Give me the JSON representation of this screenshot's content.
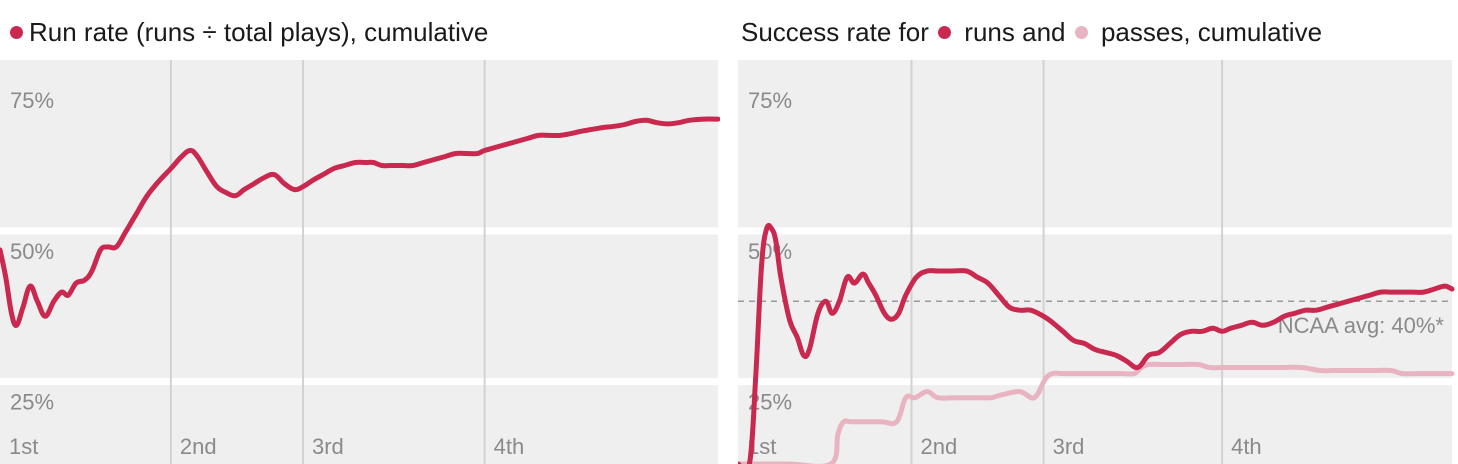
{
  "colors": {
    "runs": "#c9294f",
    "passes": "#e8b4c1",
    "panel_bg": "#efefef",
    "grid_text": "#8a8a8a"
  },
  "chart_data": [
    {
      "type": "line",
      "title_parts": [
        "Run rate (runs ÷ total plays), cumulative"
      ],
      "title_dot_colors": [
        "#c9294f"
      ],
      "y_ticks": [
        {
          "value": 75,
          "label": "75%"
        },
        {
          "value": 50,
          "label": "50%"
        },
        {
          "value": 25,
          "label": "25%"
        }
      ],
      "ylim": [
        13,
        80
      ],
      "xlim": [
        0,
        100
      ],
      "quarters": [
        {
          "x": 0,
          "label": "1st"
        },
        {
          "x": 23.8,
          "label": "2nd"
        },
        {
          "x": 42.2,
          "label": "3rd"
        },
        {
          "x": 67.5,
          "label": "4th"
        }
      ],
      "series": [
        {
          "color": "#c9294f",
          "width": 5,
          "values": [
            [
              0,
              48.5
            ],
            [
              0.8,
              44
            ],
            [
              1.6,
              38
            ],
            [
              2.3,
              36
            ],
            [
              3.2,
              39
            ],
            [
              4.2,
              42.5
            ],
            [
              5.2,
              40
            ],
            [
              6.3,
              37.5
            ],
            [
              7.5,
              40
            ],
            [
              8.6,
              41.5
            ],
            [
              9.5,
              41
            ],
            [
              10.6,
              43
            ],
            [
              11.8,
              43.5
            ],
            [
              12.8,
              45
            ],
            [
              14,
              48.5
            ],
            [
              15,
              49
            ],
            [
              16.2,
              49
            ],
            [
              17.5,
              51.5
            ],
            [
              19,
              54.5
            ],
            [
              20.5,
              57.5
            ],
            [
              22.2,
              60
            ],
            [
              23.8,
              62
            ],
            [
              25.3,
              64
            ],
            [
              26.5,
              65
            ],
            [
              27.5,
              64
            ],
            [
              28.8,
              61.5
            ],
            [
              30.2,
              59
            ],
            [
              31.5,
              58
            ],
            [
              32.8,
              57.5
            ],
            [
              34,
              58.5
            ],
            [
              35.4,
              59.5
            ],
            [
              36.8,
              60.5
            ],
            [
              38.2,
              61
            ],
            [
              39.6,
              59.5
            ],
            [
              41,
              58.5
            ],
            [
              42.2,
              59
            ],
            [
              43.5,
              60
            ],
            [
              45,
              61
            ],
            [
              46.5,
              62
            ],
            [
              48,
              62.5
            ],
            [
              49.5,
              63
            ],
            [
              51,
              63
            ],
            [
              52,
              63
            ],
            [
              53.2,
              62.5
            ],
            [
              54.5,
              62.5
            ],
            [
              56,
              62.5
            ],
            [
              57.5,
              62.5
            ],
            [
              59,
              63
            ],
            [
              60.5,
              63.5
            ],
            [
              62,
              64
            ],
            [
              63.5,
              64.5
            ],
            [
              65,
              64.5
            ],
            [
              66.5,
              64.5
            ],
            [
              67.5,
              65
            ],
            [
              69,
              65.5
            ],
            [
              70.5,
              66
            ],
            [
              72,
              66.5
            ],
            [
              73.5,
              67
            ],
            [
              75,
              67.5
            ],
            [
              76.5,
              67.5
            ],
            [
              78,
              67.5
            ],
            [
              79.5,
              67.8
            ],
            [
              81,
              68.2
            ],
            [
              82.5,
              68.5
            ],
            [
              84,
              68.8
            ],
            [
              85.5,
              69
            ],
            [
              87,
              69.3
            ],
            [
              88.5,
              69.8
            ],
            [
              90,
              70
            ],
            [
              91.5,
              69.6
            ],
            [
              93,
              69.4
            ],
            [
              94.5,
              69.6
            ],
            [
              96,
              70
            ],
            [
              98,
              70.2
            ],
            [
              100,
              70.2
            ]
          ]
        }
      ]
    },
    {
      "type": "line",
      "title_parts": [
        "Success rate for ",
        " runs and ",
        " passes, cumulative"
      ],
      "title_dot_colors": [
        "#c9294f",
        "#e8b4c1"
      ],
      "y_ticks": [
        {
          "value": 75,
          "label": "75%"
        },
        {
          "value": 50,
          "label": "50%"
        },
        {
          "value": 25,
          "label": "25%"
        }
      ],
      "ylim": [
        13,
        80
      ],
      "xlim": [
        0,
        100
      ],
      "quarters": [
        {
          "x": 0,
          "label": "1st"
        },
        {
          "x": 24.3,
          "label": "2nd"
        },
        {
          "x": 42.8,
          "label": "3rd"
        },
        {
          "x": 67.8,
          "label": "4th"
        }
      ],
      "reference_line": {
        "value": 40,
        "label": "NCAA avg: 40%*"
      },
      "series": [
        {
          "color": "#c9294f",
          "width": 5,
          "values": [
            [
              0,
              13
            ],
            [
              1.6,
              13
            ],
            [
              2.5,
              28
            ],
            [
              3.3,
              46
            ],
            [
              4,
              52
            ],
            [
              4.7,
              52
            ],
            [
              5.3,
              50
            ],
            [
              6,
              44
            ],
            [
              7.2,
              37
            ],
            [
              8.3,
              34
            ],
            [
              9.2,
              31
            ],
            [
              10,
              32
            ],
            [
              11.2,
              38
            ],
            [
              12.3,
              40
            ],
            [
              13.2,
              38
            ],
            [
              14.2,
              40
            ],
            [
              15.3,
              44
            ],
            [
              16.3,
              43
            ],
            [
              17.5,
              44.5
            ],
            [
              18.3,
              43
            ],
            [
              19.3,
              41
            ],
            [
              20.5,
              38
            ],
            [
              21.5,
              37
            ],
            [
              22.5,
              38
            ],
            [
              23.5,
              41
            ],
            [
              25,
              44
            ],
            [
              26.5,
              45
            ],
            [
              28,
              45
            ],
            [
              30,
              45
            ],
            [
              32,
              45
            ],
            [
              33.5,
              44
            ],
            [
              35,
              43
            ],
            [
              36.5,
              41
            ],
            [
              38,
              39
            ],
            [
              39.5,
              38.5
            ],
            [
              41,
              38.5
            ],
            [
              42.8,
              37.5
            ],
            [
              44,
              36.5
            ],
            [
              45.5,
              35
            ],
            [
              47,
              33.5
            ],
            [
              48.5,
              33
            ],
            [
              50,
              32
            ],
            [
              51.5,
              31.5
            ],
            [
              53,
              31
            ],
            [
              54.5,
              30
            ],
            [
              56,
              29
            ],
            [
              57.5,
              31
            ],
            [
              59,
              31.5
            ],
            [
              60.5,
              33
            ],
            [
              62,
              34.5
            ],
            [
              63.5,
              35
            ],
            [
              65,
              35
            ],
            [
              66.5,
              35.5
            ],
            [
              67.8,
              35
            ],
            [
              69,
              35.5
            ],
            [
              70.5,
              36
            ],
            [
              72,
              36.5
            ],
            [
              73.5,
              36
            ],
            [
              75,
              36.5
            ],
            [
              76.5,
              37.5
            ],
            [
              78,
              38
            ],
            [
              79.5,
              38.5
            ],
            [
              81,
              38.5
            ],
            [
              82.5,
              39
            ],
            [
              84,
              39.5
            ],
            [
              85.5,
              40
            ],
            [
              87,
              40.5
            ],
            [
              88.5,
              41
            ],
            [
              90,
              41.5
            ],
            [
              91.5,
              41.5
            ],
            [
              93,
              41.5
            ],
            [
              94.5,
              41.5
            ],
            [
              96,
              41.5
            ],
            [
              97.5,
              42
            ],
            [
              99,
              42.5
            ],
            [
              100,
              42
            ]
          ]
        },
        {
          "color": "#e8b4c1",
          "width": 5,
          "values": [
            [
              0,
              13
            ],
            [
              7,
              13
            ],
            [
              13,
              13
            ],
            [
              14,
              18
            ],
            [
              14.8,
              20
            ],
            [
              16,
              20
            ],
            [
              20,
              20
            ],
            [
              22.2,
              20
            ],
            [
              23.5,
              24
            ],
            [
              24.8,
              24
            ],
            [
              26.5,
              25
            ],
            [
              28,
              24
            ],
            [
              30.5,
              24
            ],
            [
              34,
              24
            ],
            [
              35.5,
              24
            ],
            [
              37,
              24.5
            ],
            [
              39.5,
              25
            ],
            [
              41.5,
              24
            ],
            [
              43,
              27
            ],
            [
              44,
              28
            ],
            [
              45.5,
              28
            ],
            [
              48,
              28
            ],
            [
              50,
              28
            ],
            [
              52,
              28
            ],
            [
              54,
              28
            ],
            [
              55.5,
              28
            ],
            [
              56.5,
              29
            ],
            [
              57.5,
              29.5
            ],
            [
              59.5,
              29.5
            ],
            [
              62,
              29.5
            ],
            [
              64.5,
              29.5
            ],
            [
              66,
              29
            ],
            [
              68,
              29
            ],
            [
              70,
              29
            ],
            [
              73,
              29
            ],
            [
              76,
              29
            ],
            [
              79,
              29
            ],
            [
              81.5,
              28.5
            ],
            [
              83.5,
              28.5
            ],
            [
              86,
              28.5
            ],
            [
              89,
              28.5
            ],
            [
              91.5,
              28.5
            ],
            [
              93,
              28
            ],
            [
              95,
              28
            ],
            [
              97,
              28
            ],
            [
              100,
              28
            ]
          ]
        }
      ]
    }
  ]
}
